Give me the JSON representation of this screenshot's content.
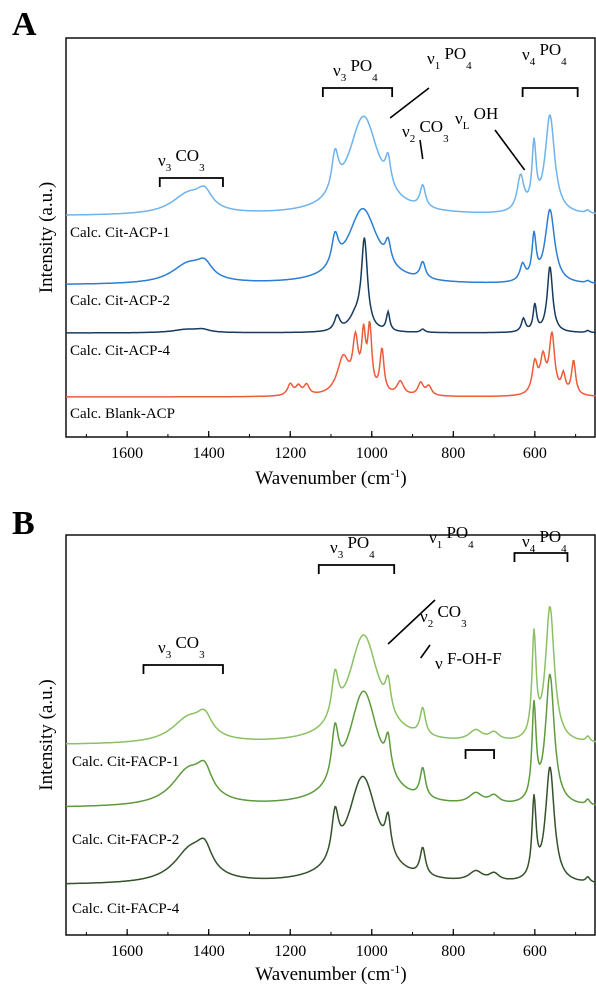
{
  "chart_data": [
    {
      "panel": "A",
      "type": "line",
      "xlabel": "Wavenumber (cm",
      "xlabel_sup": "-1",
      "xlabel_end": ")",
      "ylabel": "Intensity (a.u.)",
      "xlim": [
        1750,
        450
      ],
      "x_reversed": true,
      "xticks": [
        1600,
        1400,
        1200,
        1000,
        800,
        600
      ],
      "grid": false,
      "series": [
        {
          "name": "Calc. Cit-ACP-1",
          "color": "#6eb3ec",
          "peaks": [
            [
              1450,
              0.2,
              50
            ],
            [
              1410,
              0.16,
              22
            ],
            [
              1090,
              0.38,
              10
            ],
            [
              1020,
              0.98,
              45
            ],
            [
              960,
              0.27,
              8
            ],
            [
              875,
              0.22,
              8
            ],
            [
              635,
              0.35,
              10
            ],
            [
              602,
              0.63,
              6
            ],
            [
              563,
              0.98,
              14
            ],
            [
              470,
              0.03,
              6
            ]
          ]
        },
        {
          "name": "Calc. Cit-ACP-2",
          "color": "#2b7ed2",
          "peaks": [
            [
              1450,
              0.26,
              50
            ],
            [
              1410,
              0.18,
              22
            ],
            [
              1090,
              0.4,
              10
            ],
            [
              1022,
              1.0,
              45
            ],
            [
              960,
              0.28,
              8
            ],
            [
              875,
              0.22,
              8
            ],
            [
              630,
              0.22,
              8
            ],
            [
              602,
              0.58,
              6
            ],
            [
              563,
              0.98,
              14
            ],
            [
              470,
              0.03,
              6
            ]
          ]
        },
        {
          "name": "Calc. Cit-ACP-4",
          "color": "#173a5e",
          "peaks": [
            [
              1455,
              0.05,
              40
            ],
            [
              1415,
              0.04,
              20
            ],
            [
              1085,
              0.22,
              8
            ],
            [
              1040,
              0.2,
              20
            ],
            [
              1018,
              1.35,
              9
            ],
            [
              960,
              0.28,
              5
            ],
            [
              875,
              0.05,
              6
            ],
            [
              628,
              0.2,
              6
            ],
            [
              600,
              0.4,
              5
            ],
            [
              563,
              1.0,
              8
            ],
            [
              470,
              0.03,
              5
            ]
          ]
        },
        {
          "name": "Calc. Blank-ACP",
          "color": "#ee5a3a",
          "peaks": [
            [
              1200,
              0.18,
              8
            ],
            [
              1180,
              0.14,
              8
            ],
            [
              1160,
              0.16,
              8
            ],
            [
              1070,
              0.6,
              18
            ],
            [
              1040,
              0.78,
              8
            ],
            [
              1020,
              0.85,
              6
            ],
            [
              1005,
              1.0,
              6
            ],
            [
              975,
              0.7,
              6
            ],
            [
              930,
              0.22,
              10
            ],
            [
              880,
              0.2,
              8
            ],
            [
              860,
              0.15,
              8
            ],
            [
              600,
              0.5,
              8
            ],
            [
              580,
              0.55,
              8
            ],
            [
              558,
              0.95,
              8
            ],
            [
              530,
              0.3,
              6
            ],
            [
              505,
              0.55,
              6
            ]
          ]
        }
      ],
      "annotations": [
        {
          "base": "ν",
          "sub": "3",
          "rest": " CO",
          "sub2": "3"
        },
        {
          "base": "ν",
          "sub": "3",
          "rest": " PO",
          "sub2": "4"
        },
        {
          "base": "ν",
          "sub": "1",
          "rest": " PO",
          "sub2": "4"
        },
        {
          "base": "ν",
          "sub": "2",
          "rest": " CO",
          "sub2": "3"
        },
        {
          "base": "ν",
          "sub": "L",
          "rest": " OH",
          "sub2": ""
        },
        {
          "base": "ν",
          "sub": "4",
          "rest": " PO",
          "sub2": "4"
        }
      ]
    },
    {
      "panel": "B",
      "type": "line",
      "xlabel": "Wavenumber (cm",
      "xlabel_sup": "-1",
      "xlabel_end": ")",
      "ylabel": "Intensity (a.u.)",
      "xlim": [
        1750,
        450
      ],
      "x_reversed": true,
      "xticks": [
        1600,
        1400,
        1200,
        1000,
        800,
        600
      ],
      "grid": false,
      "series": [
        {
          "name": "Calc. Cit-FACP-1",
          "color": "#8cc163",
          "peaks": [
            [
              1450,
              0.18,
              50
            ],
            [
              1410,
              0.14,
              22
            ],
            [
              1090,
              0.32,
              10
            ],
            [
              1020,
              0.8,
              45
            ],
            [
              960,
              0.22,
              8
            ],
            [
              875,
              0.2,
              8
            ],
            [
              745,
              0.08,
              20
            ],
            [
              700,
              0.06,
              15
            ],
            [
              602,
              0.75,
              6
            ],
            [
              563,
              1.0,
              13
            ],
            [
              470,
              0.04,
              6
            ]
          ]
        },
        {
          "name": "Calc. Cit-FACP-2",
          "color": "#5d9b3c",
          "peaks": [
            [
              1450,
              0.26,
              50
            ],
            [
              1410,
              0.18,
              22
            ],
            [
              1090,
              0.38,
              10
            ],
            [
              1020,
              0.86,
              45
            ],
            [
              960,
              0.25,
              8
            ],
            [
              875,
              0.22,
              8
            ],
            [
              745,
              0.08,
              20
            ],
            [
              700,
              0.06,
              15
            ],
            [
              602,
              0.7,
              6
            ],
            [
              563,
              0.98,
              13
            ],
            [
              470,
              0.04,
              6
            ]
          ]
        },
        {
          "name": "Calc. Cit-FACP-4",
          "color": "#33522a",
          "peaks": [
            [
              1445,
              0.26,
              50
            ],
            [
              1410,
              0.18,
              22
            ],
            [
              1090,
              0.36,
              10
            ],
            [
              1022,
              0.85,
              45
            ],
            [
              960,
              0.28,
              8
            ],
            [
              875,
              0.22,
              8
            ],
            [
              745,
              0.08,
              20
            ],
            [
              700,
              0.06,
              15
            ],
            [
              602,
              0.62,
              6
            ],
            [
              563,
              0.92,
              13
            ],
            [
              470,
              0.04,
              6
            ]
          ]
        }
      ],
      "annotations": [
        {
          "base": "ν",
          "sub": "3",
          "rest": " CO",
          "sub2": "3"
        },
        {
          "base": "ν",
          "sub": "3",
          "rest": " PO",
          "sub2": "4"
        },
        {
          "base": "ν",
          "sub": "1",
          "rest": " PO",
          "sub2": "4"
        },
        {
          "base": "ν",
          "sub": "2",
          "rest": " CO",
          "sub2": "3"
        },
        {
          "base": "ν",
          "sub": "",
          "rest": " F-OH-F",
          "sub2": ""
        },
        {
          "base": "ν",
          "sub": "4",
          "rest": " PO",
          "sub2": "4"
        }
      ]
    }
  ]
}
